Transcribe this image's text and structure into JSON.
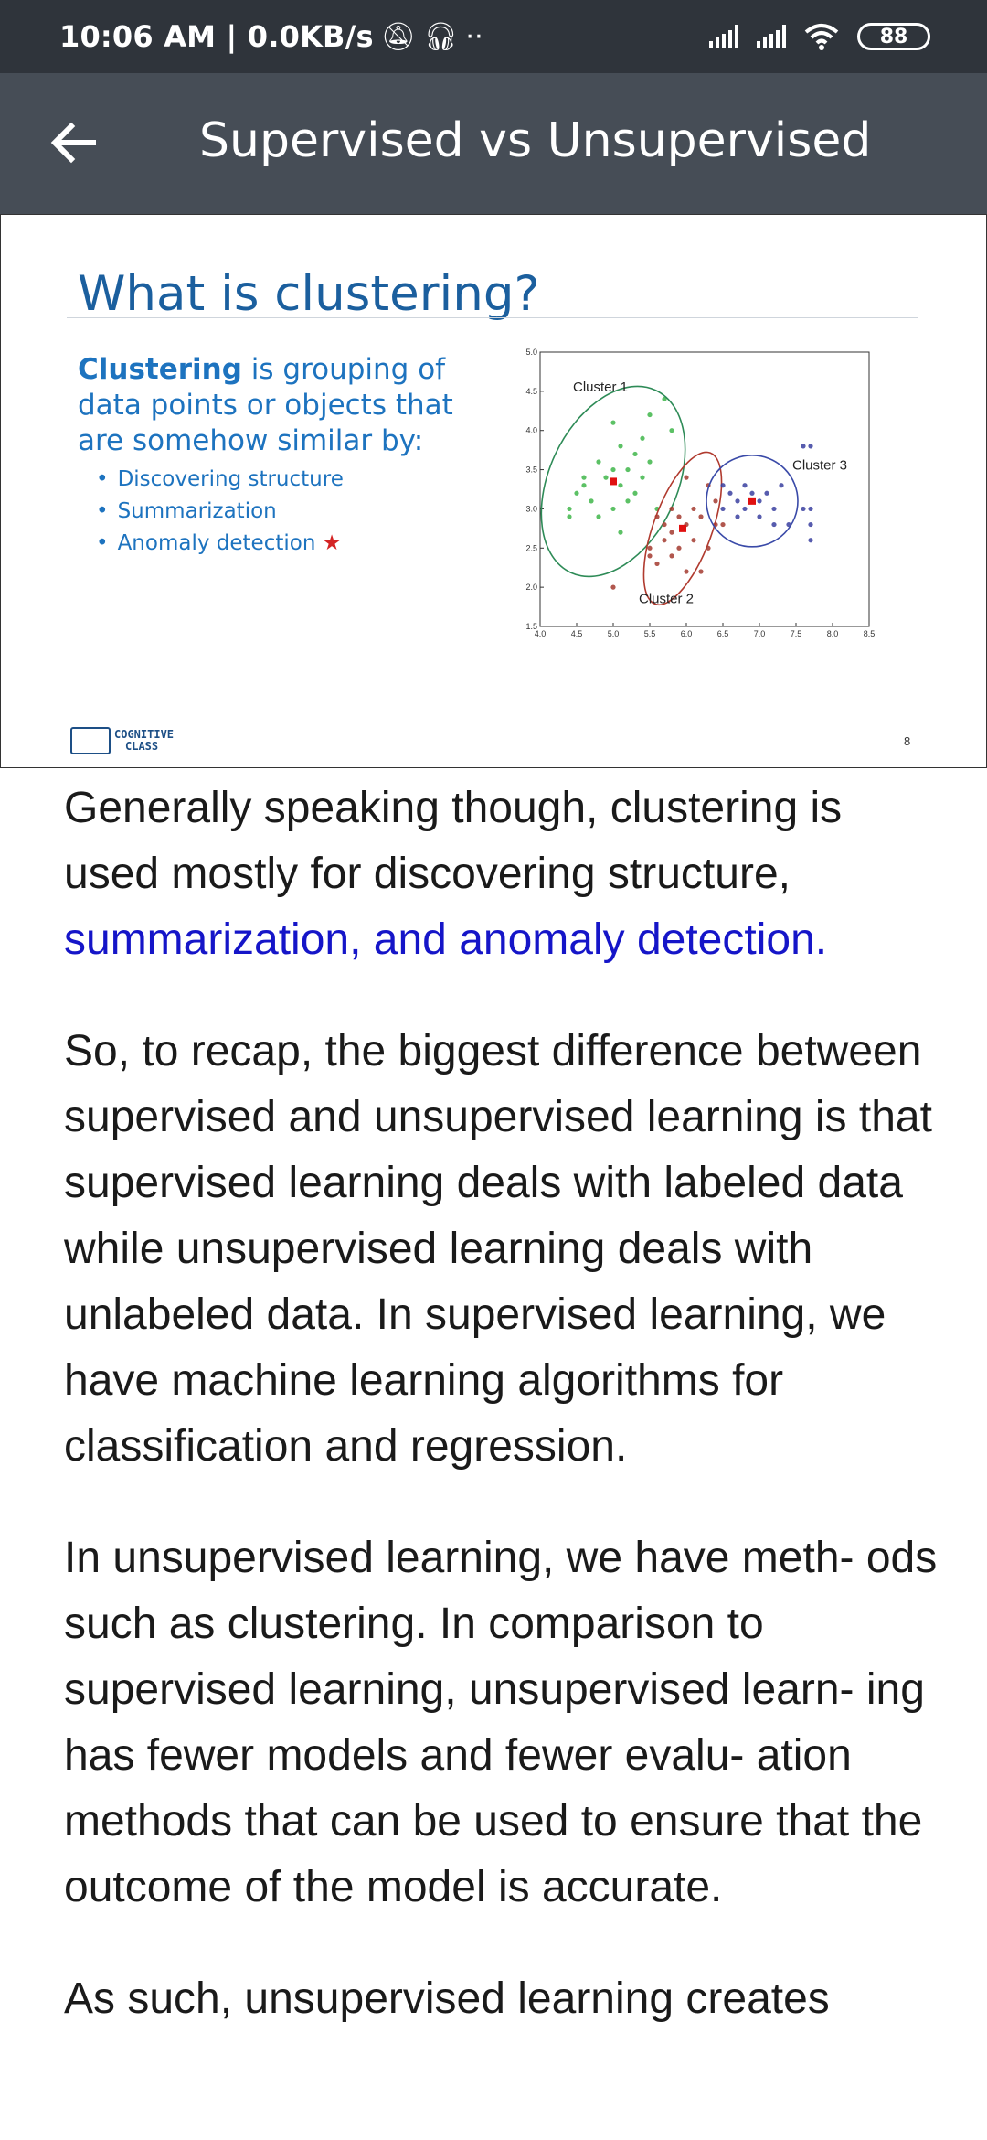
{
  "status_bar": {
    "time": "10:06 AM | 0.0KB/s",
    "battery": "88"
  },
  "app_bar": {
    "title": "Supervised vs Unsupervised"
  },
  "slide": {
    "title": "What is clustering?",
    "lead_bold": "Clustering",
    "lead_rest": " is grouping of data points or objects that are somehow similar by:",
    "bullets": [
      "Discovering structure",
      "Summarization",
      "Anomaly detection"
    ],
    "logo_line1": "COGNITIVE",
    "logo_line2": "CLASS",
    "page_number": "8"
  },
  "chart_data": {
    "type": "scatter",
    "xlim": [
      4.0,
      8.5
    ],
    "ylim": [
      1.5,
      5.0
    ],
    "x_ticks": [
      "4.0",
      "4.5",
      "5.0",
      "5.5",
      "6.0",
      "6.5",
      "7.0",
      "7.5",
      "8.0",
      "8.5"
    ],
    "y_ticks": [
      "1.5",
      "2.0",
      "2.5",
      "3.0",
      "3.5",
      "4.0",
      "4.5",
      "5.0"
    ],
    "grid": false,
    "series": [
      {
        "name": "Cluster 1",
        "color": "#3fb64a",
        "centroid": [
          5.0,
          3.35
        ],
        "points": [
          [
            4.4,
            3.0
          ],
          [
            4.5,
            3.2
          ],
          [
            4.6,
            3.3
          ],
          [
            4.7,
            3.1
          ],
          [
            4.8,
            3.6
          ],
          [
            4.9,
            3.4
          ],
          [
            5.0,
            3.5
          ],
          [
            5.0,
            3.0
          ],
          [
            5.1,
            3.8
          ],
          [
            5.1,
            3.3
          ],
          [
            5.2,
            3.5
          ],
          [
            5.2,
            3.1
          ],
          [
            5.3,
            3.7
          ],
          [
            5.3,
            3.2
          ],
          [
            5.4,
            3.9
          ],
          [
            5.4,
            3.4
          ],
          [
            5.5,
            4.2
          ],
          [
            5.5,
            3.6
          ],
          [
            5.6,
            3.0
          ],
          [
            5.7,
            4.4
          ],
          [
            5.8,
            4.0
          ],
          [
            4.8,
            2.9
          ],
          [
            5.1,
            2.7
          ],
          [
            4.6,
            3.4
          ],
          [
            4.4,
            2.9
          ],
          [
            5.0,
            4.1
          ]
        ]
      },
      {
        "name": "Cluster 2",
        "color": "#a33a2f",
        "centroid": [
          5.95,
          2.75
        ],
        "points": [
          [
            5.5,
            2.5
          ],
          [
            5.6,
            2.9
          ],
          [
            5.6,
            2.3
          ],
          [
            5.7,
            2.8
          ],
          [
            5.7,
            2.6
          ],
          [
            5.8,
            2.7
          ],
          [
            5.8,
            3.0
          ],
          [
            5.9,
            2.5
          ],
          [
            5.9,
            2.9
          ],
          [
            6.0,
            2.2
          ],
          [
            6.0,
            2.8
          ],
          [
            6.1,
            3.0
          ],
          [
            6.1,
            2.6
          ],
          [
            6.2,
            2.9
          ],
          [
            6.2,
            2.2
          ],
          [
            6.3,
            2.5
          ],
          [
            6.3,
            3.3
          ],
          [
            6.4,
            2.8
          ],
          [
            6.4,
            3.1
          ],
          [
            5.5,
            2.4
          ],
          [
            6.0,
            3.4
          ],
          [
            5.0,
            2.0
          ],
          [
            6.5,
            2.8
          ],
          [
            5.8,
            2.4
          ]
        ]
      },
      {
        "name": "Cluster 3",
        "color": "#3a3fa0",
        "centroid": [
          6.9,
          3.1
        ],
        "points": [
          [
            6.5,
            3.0
          ],
          [
            6.6,
            3.2
          ],
          [
            6.7,
            3.1
          ],
          [
            6.7,
            2.9
          ],
          [
            6.8,
            3.3
          ],
          [
            6.8,
            3.0
          ],
          [
            6.9,
            3.2
          ],
          [
            7.0,
            3.1
          ],
          [
            7.0,
            2.9
          ],
          [
            7.1,
            3.2
          ],
          [
            7.2,
            3.0
          ],
          [
            7.3,
            3.3
          ],
          [
            7.4,
            2.8
          ],
          [
            7.6,
            3.0
          ],
          [
            7.7,
            3.0
          ],
          [
            7.6,
            3.8
          ],
          [
            7.7,
            3.8
          ],
          [
            7.7,
            2.8
          ],
          [
            7.7,
            2.6
          ],
          [
            6.5,
            3.3
          ],
          [
            7.2,
            2.8
          ]
        ]
      }
    ]
  },
  "article": {
    "p1": "Generally speaking though, clustering is used mostly for discovering structure, ",
    "p1_highlight": "summarization, and anomaly detection.",
    "p2": "So, to recap, the biggest difference between supervised and unsupervised learning is that supervised learning deals with labeled data while unsupervised learning deals with unlabeled data. In supervised learning, we have machine learning algorithms for classification and regression.",
    "p3": "In unsupervised learning, we have meth- ods such as clustering. In comparison to supervised learning, unsupervised learn- ing has fewer models and fewer evalu- ation methods that can be used to ensure that the outcome of the model is accurate.",
    "p4": "As such, unsupervised learning creates"
  }
}
